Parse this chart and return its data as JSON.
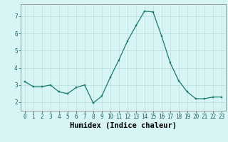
{
  "x": [
    0,
    1,
    2,
    3,
    4,
    5,
    6,
    7,
    8,
    9,
    10,
    11,
    12,
    13,
    14,
    15,
    16,
    17,
    18,
    19,
    20,
    21,
    22,
    23
  ],
  "y": [
    3.2,
    2.9,
    2.9,
    3.0,
    2.6,
    2.5,
    2.85,
    3.0,
    1.95,
    2.35,
    3.45,
    4.45,
    5.55,
    6.45,
    7.3,
    7.25,
    5.85,
    4.3,
    3.25,
    2.6,
    2.2,
    2.2,
    2.3,
    2.3
  ],
  "xlabel": "Humidex (Indice chaleur)",
  "ylim": [
    1.5,
    7.7
  ],
  "xlim": [
    -0.5,
    23.5
  ],
  "yticks": [
    2,
    3,
    4,
    5,
    6,
    7
  ],
  "xticks": [
    0,
    1,
    2,
    3,
    4,
    5,
    6,
    7,
    8,
    9,
    10,
    11,
    12,
    13,
    14,
    15,
    16,
    17,
    18,
    19,
    20,
    21,
    22,
    23
  ],
  "xtick_labels": [
    "0",
    "1",
    "2",
    "3",
    "4",
    "5",
    "6",
    "7",
    "8",
    "9",
    "10",
    "11",
    "12",
    "13",
    "14",
    "15",
    "16",
    "17",
    "18",
    "19",
    "20",
    "21",
    "22",
    "23"
  ],
  "line_color": "#1a7a6e",
  "marker_color": "#1a7a6e",
  "bg_color": "#d8f5f5",
  "grid_color": "#b8dede",
  "axis_bg": "#d8f5f5",
  "tick_fontsize": 5.5,
  "label_fontsize": 7.5
}
